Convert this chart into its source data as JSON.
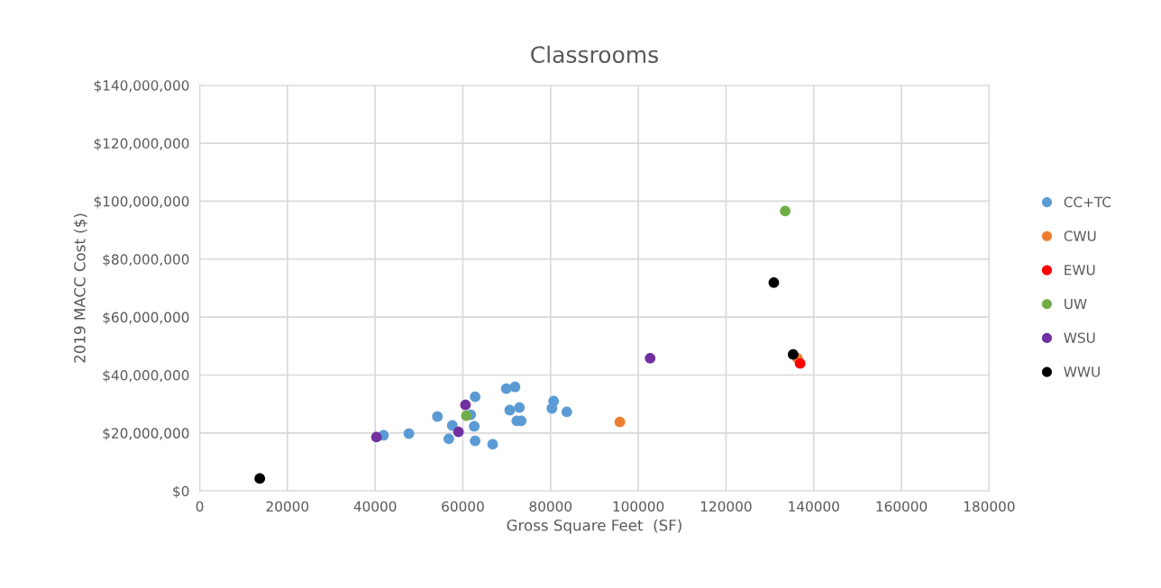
{
  "chart_data": {
    "type": "scatter",
    "title": "Classrooms",
    "xlabel": "Gross Square Feet  (SF)",
    "ylabel": "2019 MACC Cost ($)",
    "marker": "circle",
    "grid": true,
    "legend": "right",
    "xlim": [
      0,
      180000
    ],
    "xticks": [
      0,
      20000,
      40000,
      60000,
      80000,
      100000,
      120000,
      140000,
      160000,
      180000
    ],
    "ylim": [
      0,
      140000000
    ],
    "yticks": [
      {
        "value": 0,
        "label": "$0"
      },
      {
        "value": 20000000,
        "label": "$20,000,000"
      },
      {
        "value": 40000000,
        "label": "$40,000,000"
      },
      {
        "value": 60000000,
        "label": "$60,000,000"
      },
      {
        "value": 80000000,
        "label": "$80,000,000"
      },
      {
        "value": 100000000,
        "label": "$100,000,000"
      },
      {
        "value": 120000000,
        "label": "$120,000,000"
      },
      {
        "value": 140000000,
        "label": "$140,000,000"
      }
    ],
    "series": [
      {
        "name": "CC+TC",
        "color": "#5b9bd5",
        "x": [
          41900,
          47700,
          54200,
          57600,
          56800,
          62800,
          61800,
          62600,
          62800,
          66800,
          69900,
          71900,
          70700,
          72900,
          72300,
          73300,
          80700,
          80300,
          83700
        ],
        "values": [
          19200000,
          19800000,
          25700000,
          22600000,
          18000000,
          32500000,
          26300000,
          22300000,
          17300000,
          16100000,
          35300000,
          35900000,
          27900000,
          28800000,
          24200000,
          24200000,
          31000000,
          28500000,
          27300000
        ]
      },
      {
        "name": "CWU",
        "color": "#ed7d31",
        "x": [
          95800,
          136300
        ],
        "values": [
          23800000,
          45800000
        ]
      },
      {
        "name": "EWU",
        "color": "#ff0000",
        "x": [
          136900
        ],
        "values": [
          44000000
        ]
      },
      {
        "name": "UW",
        "color": "#70ad47",
        "x": [
          60800,
          133500
        ],
        "values": [
          26000000,
          96600000
        ]
      },
      {
        "name": "WSU",
        "color": "#7030a0",
        "x": [
          40300,
          60600,
          59000,
          102700
        ],
        "values": [
          18600000,
          29700000,
          20400000,
          45800000
        ]
      },
      {
        "name": "WWU",
        "color": "#000000",
        "x": [
          13700,
          130900,
          135300
        ],
        "values": [
          4300000,
          71900000,
          47100000
        ]
      }
    ]
  }
}
